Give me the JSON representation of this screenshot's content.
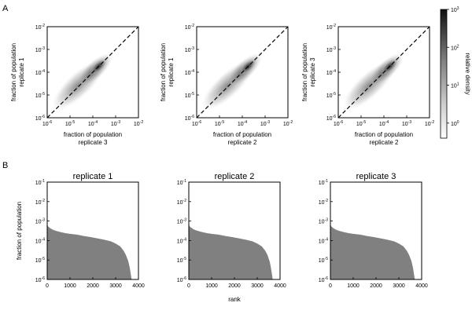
{
  "panel_labels": [
    "A",
    "B"
  ],
  "colors": {
    "density": "#707070",
    "area_fill": "#808080",
    "diagonal": "#000000",
    "frame": "#000000"
  },
  "chart_data": [
    {
      "type": "heatmap",
      "panel": "A",
      "xlabel": [
        "fraction of population",
        "replicate 3"
      ],
      "ylabel": [
        "fraction of population",
        "replicate 1"
      ],
      "xscale": "log",
      "yscale": "log",
      "xlim": [
        1e-06,
        0.01
      ],
      "ylim": [
        1e-06,
        0.01
      ],
      "xticks": [
        {
          "b": "10",
          "e": "-6"
        },
        {
          "b": "10",
          "e": "-5"
        },
        {
          "b": "10",
          "e": "-4"
        },
        {
          "b": "10",
          "e": "-3"
        },
        {
          "b": "10",
          "e": "-2"
        }
      ],
      "yticks": [
        {
          "b": "10",
          "e": "-6"
        },
        {
          "b": "10",
          "e": "-5"
        },
        {
          "b": "10",
          "e": "-4"
        },
        {
          "b": "10",
          "e": "-3"
        },
        {
          "b": "10",
          "e": "-2"
        }
      ],
      "diagonal": true,
      "density_center": [
        0.00018,
        0.00018
      ],
      "density_lowest": [
        3e-06,
        4e-06
      ],
      "density_peak": 300,
      "grid": false
    },
    {
      "type": "heatmap",
      "panel": "A",
      "xlabel": [
        "fraction of population",
        "replicate 2"
      ],
      "ylabel": [
        "fraction of population",
        "replicate 1"
      ],
      "xscale": "log",
      "yscale": "log",
      "xlim": [
        1e-06,
        0.01
      ],
      "ylim": [
        1e-06,
        0.01
      ],
      "xticks": [
        {
          "b": "10",
          "e": "-6"
        },
        {
          "b": "10",
          "e": "-5"
        },
        {
          "b": "10",
          "e": "-4"
        },
        {
          "b": "10",
          "e": "-3"
        },
        {
          "b": "10",
          "e": "-2"
        }
      ],
      "yticks": [
        {
          "b": "10",
          "e": "-6"
        },
        {
          "b": "10",
          "e": "-5"
        },
        {
          "b": "10",
          "e": "-4"
        },
        {
          "b": "10",
          "e": "-3"
        },
        {
          "b": "10",
          "e": "-2"
        }
      ],
      "diagonal": true,
      "density_center": [
        0.00018,
        0.00018
      ],
      "density_lowest": [
        3e-06,
        4e-06
      ],
      "density_peak": 300,
      "grid": false
    },
    {
      "type": "heatmap",
      "panel": "A",
      "xlabel": [
        "fraction of population",
        "replicate 2"
      ],
      "ylabel": [
        "fraction of population",
        "replicate 3"
      ],
      "xscale": "log",
      "yscale": "log",
      "xlim": [
        1e-06,
        0.01
      ],
      "ylim": [
        1e-06,
        0.01
      ],
      "xticks": [
        {
          "b": "10",
          "e": "-6"
        },
        {
          "b": "10",
          "e": "-5"
        },
        {
          "b": "10",
          "e": "-4"
        },
        {
          "b": "10",
          "e": "-3"
        },
        {
          "b": "10",
          "e": "-2"
        }
      ],
      "yticks": [
        {
          "b": "10",
          "e": "-6"
        },
        {
          "b": "10",
          "e": "-5"
        },
        {
          "b": "10",
          "e": "-4"
        },
        {
          "b": "10",
          "e": "-3"
        },
        {
          "b": "10",
          "e": "-2"
        }
      ],
      "diagonal": true,
      "density_center": [
        0.00018,
        0.00018
      ],
      "density_lowest": [
        3e-06,
        4e-06
      ],
      "density_peak": 300,
      "grid": false
    },
    {
      "type": "area",
      "panel": "B",
      "title": "replicate 1",
      "xlabel": "",
      "ylabel": "fraction of population",
      "yscale": "log",
      "xlim": [
        0,
        4000
      ],
      "ylim": [
        1e-06,
        0.1
      ],
      "xticks": [
        "0",
        "1000",
        "2000",
        "3000",
        "4000"
      ],
      "yticks": [
        {
          "b": "10",
          "e": "-6"
        },
        {
          "b": "10",
          "e": "-5"
        },
        {
          "b": "10",
          "e": "-4"
        },
        {
          "b": "10",
          "e": "-3"
        },
        {
          "b": "10",
          "e": "-2"
        },
        {
          "b": "10",
          "e": "-1"
        }
      ],
      "x": [
        0,
        20,
        60,
        120,
        200,
        300,
        450,
        600,
        800,
        1000,
        1300,
        1600,
        1900,
        2200,
        2500,
        2800,
        3000,
        3200,
        3350,
        3450,
        3550,
        3620,
        3660,
        3700
      ],
      "y": [
        0.0008,
        0.0006,
        0.0005,
        0.00045,
        0.00038,
        0.00034,
        0.0003,
        0.00027,
        0.00024,
        0.00022,
        0.0002,
        0.00017,
        0.00015,
        0.00013,
        0.00011,
        9e-05,
        7e-05,
        5e-05,
        3e-05,
        1.8e-05,
        9e-06,
        4e-06,
        2e-06,
        1e-06
      ],
      "grid": false
    },
    {
      "type": "area",
      "panel": "B",
      "title": "replicate 2",
      "xlabel": "rank",
      "ylabel": "",
      "yscale": "log",
      "xlim": [
        0,
        4000
      ],
      "ylim": [
        1e-06,
        0.1
      ],
      "xticks": [
        "0",
        "1000",
        "2000",
        "3000",
        "4000"
      ],
      "yticks": [
        {
          "b": "10",
          "e": "-6"
        },
        {
          "b": "10",
          "e": "-5"
        },
        {
          "b": "10",
          "e": "-4"
        },
        {
          "b": "10",
          "e": "-3"
        },
        {
          "b": "10",
          "e": "-2"
        },
        {
          "b": "10",
          "e": "-1"
        }
      ],
      "x": [
        0,
        20,
        60,
        120,
        200,
        300,
        450,
        600,
        800,
        1000,
        1300,
        1600,
        1900,
        2200,
        2500,
        2800,
        3000,
        3200,
        3350,
        3450,
        3550,
        3600,
        3640,
        3680
      ],
      "y": [
        0.0008,
        0.0006,
        0.0005,
        0.00045,
        0.00038,
        0.00034,
        0.0003,
        0.00027,
        0.00024,
        0.00022,
        0.0002,
        0.00017,
        0.00015,
        0.00013,
        0.00011,
        9e-05,
        7e-05,
        5e-05,
        3e-05,
        1.8e-05,
        8e-06,
        4e-06,
        2e-06,
        1e-06
      ],
      "grid": false
    },
    {
      "type": "area",
      "panel": "B",
      "title": "replicate 3",
      "xlabel": "",
      "ylabel": "",
      "yscale": "log",
      "xlim": [
        0,
        4000
      ],
      "ylim": [
        1e-06,
        0.1
      ],
      "xticks": [
        "0",
        "1000",
        "2000",
        "3000",
        "4000"
      ],
      "yticks": [
        {
          "b": "10",
          "e": "-6"
        },
        {
          "b": "10",
          "e": "-5"
        },
        {
          "b": "10",
          "e": "-4"
        },
        {
          "b": "10",
          "e": "-3"
        },
        {
          "b": "10",
          "e": "-2"
        },
        {
          "b": "10",
          "e": "-1"
        }
      ],
      "x": [
        0,
        20,
        60,
        120,
        200,
        300,
        450,
        600,
        800,
        1000,
        1300,
        1600,
        1900,
        2200,
        2500,
        2800,
        3000,
        3200,
        3350,
        3450,
        3550,
        3620,
        3660,
        3700
      ],
      "y": [
        0.0008,
        0.0006,
        0.0005,
        0.00045,
        0.00038,
        0.00034,
        0.0003,
        0.00027,
        0.00024,
        0.00022,
        0.0002,
        0.00017,
        0.00015,
        0.00013,
        0.00011,
        9e-05,
        7e-05,
        5e-05,
        3e-05,
        1.8e-05,
        9e-06,
        4e-06,
        2e-06,
        1e-06
      ],
      "grid": false
    }
  ],
  "colorbar": {
    "label": "relative density",
    "scale": "log",
    "range": [
      0.4,
      1000
    ],
    "ticks": [
      {
        "b": "10",
        "e": "0"
      },
      {
        "b": "10",
        "e": "1"
      },
      {
        "b": "10",
        "e": "2"
      },
      {
        "b": "10",
        "e": "3"
      }
    ]
  }
}
